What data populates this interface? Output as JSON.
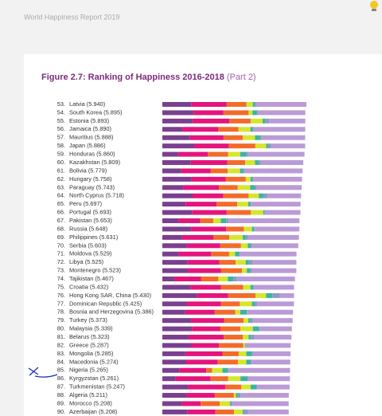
{
  "header": {
    "title": "World Happiness Report 2019"
  },
  "chart_data": {
    "type": "bar",
    "orientation": "horizontal",
    "stacked": true,
    "title": "Figure 2.7: Ranking of Happiness 2016-2018",
    "title_part": "(Part 2)",
    "ranks": [
      "53.",
      "54.",
      "55.",
      "56.",
      "57.",
      "58.",
      "59.",
      "60.",
      "61.",
      "62.",
      "63.",
      "64.",
      "65.",
      "66.",
      "67.",
      "68.",
      "69.",
      "70.",
      "71.",
      "72.",
      "73.",
      "74.",
      "75.",
      "76.",
      "77.",
      "78.",
      "79.",
      "80.",
      "81.",
      "82.",
      "83.",
      "84.",
      "85.",
      "86.",
      "87.",
      "88.",
      "89.",
      "90."
    ],
    "categories": [
      "Latvia (5.940)",
      "South Korea (5.895)",
      "Estonia (5.893)",
      "Jamaica (5.890)",
      "Mauritius (5.888)",
      "Japan (5.886)",
      "Honduras (5.860)",
      "Kazakhstan (5.809)",
      "Bolivia (5.779)",
      "Hungary (5.758)",
      "Paraguay (5.743)",
      "North Cyprus (5.718)",
      "Peru (5.697)",
      "Portugal (5.693)",
      "Pakistan (5.653)",
      "Russia (5.648)",
      "Philippines (5.631)",
      "Serbia (5.603)",
      "Moldova (5.529)",
      "Libya (5.525)",
      "Montenegro (5.523)",
      "Tajikistan (5.467)",
      "Croatia (5.432)",
      "Hong Kong SAR, China (5.430)",
      "Dominican Republic (5.425)",
      "Bosnia and Herzegovina (5.386)",
      "Turkey (5.373)",
      "Malaysia (5.339)",
      "Belarus (5.323)",
      "Greece (5.287)",
      "Mongolia (5.285)",
      "Macedonia (5.274)",
      "Nigeria (5.265)",
      "Kyrgyzstan (5.261)",
      "Turkmenistan (5.247)",
      "Algeria (5.211)",
      "Morocco (5.208)",
      "Azerbaijan (5.208)"
    ],
    "xlim": [
      0,
      6.2
    ],
    "series": [
      {
        "color": "#7a3f8f",
        "values": [
          1.187,
          1.301,
          1.237,
          0.831,
          1.12,
          1.327,
          0.642,
          1.173,
          0.776,
          1.201,
          0.855,
          1.263,
          0.96,
          1.221,
          0.677,
          1.183,
          0.807,
          1.004,
          0.685,
          1.044,
          1.051,
          0.493,
          1.155,
          1.438,
          1.015,
          0.945,
          1.183,
          1.221,
          1.067,
          1.181,
          0.948,
          0.983,
          0.696,
          0.551,
          1.052,
          1.002,
          0.801,
          1.043
        ]
      },
      {
        "color": "#e5147c",
        "values": [
          1.465,
          1.219,
          1.528,
          1.478,
          1.402,
          1.419,
          1.236,
          1.508,
          1.209,
          1.41,
          1.475,
          1.252,
          1.274,
          1.431,
          0.886,
          1.452,
          1.293,
          1.383,
          1.328,
          1.303,
          1.361,
          1.098,
          1.266,
          1.277,
          1.401,
          1.212,
          1.36,
          1.171,
          1.465,
          1.156,
          1.531,
          1.294,
          1.111,
          1.438,
          1.538,
          1.16,
          0.782,
          1.147
        ]
      },
      {
        "color": "#f26b2a",
        "values": [
          0.812,
          1.036,
          0.874,
          0.831,
          0.798,
          1.088,
          0.828,
          0.729,
          0.706,
          0.828,
          0.777,
          1.042,
          0.854,
          0.999,
          0.535,
          0.726,
          0.657,
          0.854,
          0.739,
          0.673,
          0.871,
          0.718,
          0.914,
          1.122,
          0.779,
          0.845,
          0.808,
          0.828,
          0.789,
          0.999,
          0.667,
          0.838,
          0.245,
          0.723,
          0.657,
          0.785,
          0.782,
          0.769
        ]
      },
      {
        "color": "#d6e62b",
        "values": [
          0.264,
          0.159,
          0.495,
          0.49,
          0.498,
          0.445,
          0.507,
          0.41,
          0.511,
          0.199,
          0.514,
          0.417,
          0.455,
          0.508,
          0.313,
          0.334,
          0.558,
          0.282,
          0.245,
          0.416,
          0.197,
          0.389,
          0.296,
          0.44,
          0.497,
          0.212,
          0.195,
          0.508,
          0.235,
          0.067,
          0.317,
          0.345,
          0.426,
          0.508,
          0.394,
          0.086,
          0.418,
          0.351
        ]
      },
      {
        "color": "#3bb3a3",
        "values": [
          0.075,
          0.175,
          0.103,
          0.107,
          0.215,
          0.069,
          0.246,
          0.146,
          0.137,
          0.081,
          0.184,
          0.191,
          0.083,
          0.047,
          0.22,
          0.082,
          0.117,
          0.137,
          0.181,
          0.133,
          0.142,
          0.23,
          0.119,
          0.258,
          0.113,
          0.263,
          0.083,
          0.26,
          0.094,
          0.0,
          0.235,
          0.185,
          0.215,
          0.3,
          0.244,
          0.073,
          0.036,
          0.035
        ]
      },
      {
        "color": "#8c9bbf",
        "values": [
          0.064,
          0.056,
          0.161,
          0.028,
          0.06,
          0.14,
          0.078,
          0.096,
          0.064,
          0.02,
          0.08,
          0.162,
          0.027,
          0.025,
          0.098,
          0.031,
          0.107,
          0.039,
          0.0,
          0.152,
          0.08,
          0.144,
          0.022,
          0.287,
          0.101,
          0.006,
          0.106,
          0.024,
          0.142,
          0.034,
          0.038,
          0.034,
          0.041,
          0.023,
          0.028,
          0.114,
          0.076,
          0.182
        ]
      },
      {
        "color": "#bb9bd6",
        "values": [
          2.073,
          1.949,
          1.495,
          2.125,
          1.795,
          1.398,
          2.323,
          1.747,
          2.376,
          2.019,
          1.858,
          1.391,
          2.044,
          1.462,
          2.924,
          1.84,
          2.092,
          1.904,
          2.351,
          1.804,
          1.821,
          2.395,
          1.66,
          0.608,
          1.519,
          1.903,
          1.638,
          1.327,
          1.531,
          1.85,
          1.549,
          1.595,
          2.531,
          1.718,
          1.334,
          1.991,
          2.313,
          1.681
        ]
      }
    ]
  }
}
